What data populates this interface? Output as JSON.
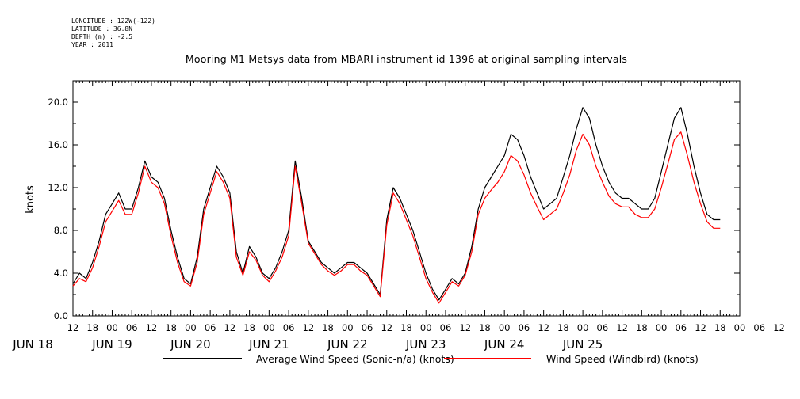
{
  "meta": {
    "longitude": "LONGITUDE : 122W(-122)",
    "latitude": "LATITUDE : 36.8N",
    "depth": "DEPTH (m) : -2.5",
    "year": "YEAR : 2011"
  },
  "chart_data": {
    "type": "line",
    "title": "Mooring M1 Metsys data from MBARI instrument id 1396 at original sampling intervals",
    "ylabel": "knots",
    "xlabel": "",
    "ylim": [
      0,
      22.0
    ],
    "xlim_hours": [
      12,
      216
    ],
    "yticks": [
      "0.0",
      "4.0",
      "8.0",
      "12.0",
      "16.0",
      "20.0"
    ],
    "xtick_hour_labels": [
      "12",
      "18",
      "00",
      "06",
      "12",
      "18",
      "00",
      "06",
      "12",
      "18",
      "00",
      "06",
      "12",
      "18",
      "00",
      "06",
      "12",
      "18",
      "00",
      "06",
      "12",
      "18",
      "00",
      "06",
      "12",
      "18",
      "00",
      "06",
      "12",
      "18",
      "00",
      "06",
      "12",
      "18",
      "00",
      "06",
      "12"
    ],
    "date_labels": [
      "JUN 18",
      "JUN 19",
      "JUN 20",
      "JUN 21",
      "JUN 22",
      "JUN 23",
      "JUN 24",
      "JUN 25"
    ],
    "x_time_reference": "JUN 18 00:00",
    "grid": false,
    "legend": "bottom",
    "series": [
      {
        "name": "Average Wind Speed (Sonic-n/a) (knots)",
        "color": "#000000",
        "points": [
          [
            12,
            3.0
          ],
          [
            14,
            4.0
          ],
          [
            16,
            3.5
          ],
          [
            18,
            5.0
          ],
          [
            20,
            7.0
          ],
          [
            22,
            9.5
          ],
          [
            24,
            10.5
          ],
          [
            26,
            11.5
          ],
          [
            28,
            10.0
          ],
          [
            30,
            10.0
          ],
          [
            32,
            12.0
          ],
          [
            34,
            14.5
          ],
          [
            36,
            13.0
          ],
          [
            38,
            12.5
          ],
          [
            40,
            11.0
          ],
          [
            42,
            8.0
          ],
          [
            44,
            5.5
          ],
          [
            46,
            3.5
          ],
          [
            48,
            3.0
          ],
          [
            50,
            5.5
          ],
          [
            52,
            10.0
          ],
          [
            54,
            12.0
          ],
          [
            56,
            14.0
          ],
          [
            58,
            13.0
          ],
          [
            60,
            11.5
          ],
          [
            62,
            6.0
          ],
          [
            64,
            4.0
          ],
          [
            66,
            6.5
          ],
          [
            68,
            5.5
          ],
          [
            70,
            4.0
          ],
          [
            72,
            3.5
          ],
          [
            74,
            4.5
          ],
          [
            76,
            6.0
          ],
          [
            78,
            8.0
          ],
          [
            80,
            14.5
          ],
          [
            82,
            11.0
          ],
          [
            84,
            7.0
          ],
          [
            86,
            6.0
          ],
          [
            88,
            5.0
          ],
          [
            90,
            4.5
          ],
          [
            92,
            4.0
          ],
          [
            94,
            4.5
          ],
          [
            96,
            5.0
          ],
          [
            98,
            5.0
          ],
          [
            100,
            4.5
          ],
          [
            102,
            4.0
          ],
          [
            104,
            3.0
          ],
          [
            106,
            2.0
          ],
          [
            108,
            9.0
          ],
          [
            110,
            12.0
          ],
          [
            112,
            11.0
          ],
          [
            114,
            9.5
          ],
          [
            116,
            8.0
          ],
          [
            118,
            6.0
          ],
          [
            120,
            4.0
          ],
          [
            122,
            2.5
          ],
          [
            124,
            1.5
          ],
          [
            126,
            2.5
          ],
          [
            128,
            3.5
          ],
          [
            130,
            3.0
          ],
          [
            132,
            4.0
          ],
          [
            134,
            6.5
          ],
          [
            136,
            10.0
          ],
          [
            138,
            12.0
          ],
          [
            140,
            13.0
          ],
          [
            142,
            14.0
          ],
          [
            144,
            15.0
          ],
          [
            146,
            17.0
          ],
          [
            148,
            16.5
          ],
          [
            150,
            15.0
          ],
          [
            152,
            13.0
          ],
          [
            154,
            11.5
          ],
          [
            156,
            10.0
          ],
          [
            158,
            10.5
          ],
          [
            160,
            11.0
          ],
          [
            162,
            13.0
          ],
          [
            164,
            15.0
          ],
          [
            166,
            17.5
          ],
          [
            168,
            19.5
          ],
          [
            170,
            18.5
          ],
          [
            172,
            16.0
          ],
          [
            174,
            14.0
          ],
          [
            176,
            12.5
          ],
          [
            178,
            11.5
          ],
          [
            180,
            11.0
          ],
          [
            182,
            11.0
          ],
          [
            184,
            10.5
          ],
          [
            186,
            10.0
          ],
          [
            188,
            10.0
          ],
          [
            190,
            11.0
          ],
          [
            192,
            13.5
          ],
          [
            194,
            16.0
          ],
          [
            196,
            18.5
          ],
          [
            198,
            19.5
          ],
          [
            200,
            17.0
          ],
          [
            202,
            14.0
          ],
          [
            204,
            11.5
          ],
          [
            206,
            9.5
          ],
          [
            208,
            9.0
          ],
          [
            210,
            9.0
          ]
        ]
      },
      {
        "name": "Wind Speed (Windbird) (knots)",
        "color": "#ff0000",
        "points": [
          [
            12,
            2.8
          ],
          [
            14,
            3.5
          ],
          [
            16,
            3.2
          ],
          [
            18,
            4.5
          ],
          [
            20,
            6.5
          ],
          [
            22,
            8.8
          ],
          [
            24,
            9.8
          ],
          [
            26,
            10.8
          ],
          [
            28,
            9.5
          ],
          [
            30,
            9.5
          ],
          [
            32,
            11.5
          ],
          [
            34,
            14.0
          ],
          [
            36,
            12.5
          ],
          [
            38,
            12.0
          ],
          [
            40,
            10.5
          ],
          [
            42,
            7.5
          ],
          [
            44,
            5.0
          ],
          [
            46,
            3.2
          ],
          [
            48,
            2.8
          ],
          [
            50,
            5.0
          ],
          [
            52,
            9.5
          ],
          [
            54,
            11.5
          ],
          [
            56,
            13.5
          ],
          [
            58,
            12.5
          ],
          [
            60,
            11.0
          ],
          [
            62,
            5.5
          ],
          [
            64,
            3.8
          ],
          [
            66,
            6.0
          ],
          [
            68,
            5.2
          ],
          [
            70,
            3.8
          ],
          [
            72,
            3.2
          ],
          [
            74,
            4.2
          ],
          [
            76,
            5.5
          ],
          [
            78,
            7.5
          ],
          [
            80,
            14.0
          ],
          [
            82,
            10.5
          ],
          [
            84,
            6.8
          ],
          [
            86,
            5.8
          ],
          [
            88,
            4.8
          ],
          [
            90,
            4.2
          ],
          [
            92,
            3.8
          ],
          [
            94,
            4.2
          ],
          [
            96,
            4.8
          ],
          [
            98,
            4.8
          ],
          [
            100,
            4.2
          ],
          [
            102,
            3.8
          ],
          [
            104,
            2.8
          ],
          [
            106,
            1.8
          ],
          [
            108,
            8.5
          ],
          [
            110,
            11.5
          ],
          [
            112,
            10.5
          ],
          [
            114,
            9.0
          ],
          [
            116,
            7.5
          ],
          [
            118,
            5.5
          ],
          [
            120,
            3.5
          ],
          [
            122,
            2.2
          ],
          [
            124,
            1.2
          ],
          [
            126,
            2.2
          ],
          [
            128,
            3.2
          ],
          [
            130,
            2.8
          ],
          [
            132,
            3.8
          ],
          [
            134,
            6.0
          ],
          [
            136,
            9.5
          ],
          [
            138,
            11.0
          ],
          [
            140,
            11.8
          ],
          [
            142,
            12.5
          ],
          [
            144,
            13.5
          ],
          [
            146,
            15.0
          ],
          [
            148,
            14.5
          ],
          [
            150,
            13.2
          ],
          [
            152,
            11.5
          ],
          [
            154,
            10.2
          ],
          [
            156,
            9.0
          ],
          [
            158,
            9.5
          ],
          [
            160,
            10.0
          ],
          [
            162,
            11.5
          ],
          [
            164,
            13.2
          ],
          [
            166,
            15.5
          ],
          [
            168,
            17.0
          ],
          [
            170,
            16.0
          ],
          [
            172,
            14.0
          ],
          [
            174,
            12.5
          ],
          [
            176,
            11.2
          ],
          [
            178,
            10.5
          ],
          [
            180,
            10.2
          ],
          [
            182,
            10.2
          ],
          [
            184,
            9.5
          ],
          [
            186,
            9.2
          ],
          [
            188,
            9.2
          ],
          [
            190,
            10.0
          ],
          [
            192,
            12.0
          ],
          [
            194,
            14.2
          ],
          [
            196,
            16.5
          ],
          [
            198,
            17.2
          ],
          [
            200,
            15.0
          ],
          [
            202,
            12.5
          ],
          [
            204,
            10.5
          ],
          [
            206,
            8.8
          ],
          [
            208,
            8.2
          ],
          [
            210,
            8.2
          ]
        ]
      }
    ]
  }
}
